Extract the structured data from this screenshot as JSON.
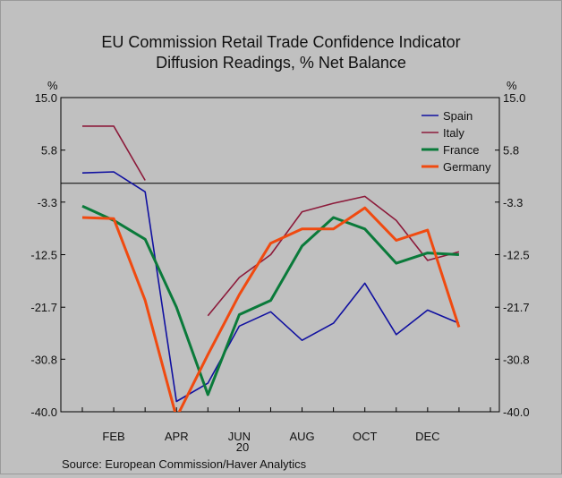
{
  "chart_data": {
    "type": "line",
    "title": "EU Commission Retail Trade Confidence Indicator",
    "subtitle": "Diffusion Readings, % Net Balance",
    "unit_left": "%",
    "unit_right": "%",
    "source": "Source:  European Commission/Haver Analytics",
    "ylim": [
      -40.0,
      15.0
    ],
    "yticks": [
      15.0,
      5.8,
      -3.3,
      -12.5,
      -21.7,
      -30.8,
      -40.0
    ],
    "ytick_labels": [
      "15.0",
      "5.8",
      "-3.3",
      "-12.5",
      "-21.7",
      "-30.8",
      "-40.0"
    ],
    "x": [
      "2020-01",
      "2020-02",
      "2020-03",
      "2020-04",
      "2020-05",
      "2020-06",
      "2020-07",
      "2020-08",
      "2020-09",
      "2020-10",
      "2020-11",
      "2020-12",
      "2021-01",
      "2021-02"
    ],
    "x_tick_labels": [
      {
        "month": "2020-02",
        "label": "FEB"
      },
      {
        "month": "2020-04",
        "label": "APR"
      },
      {
        "month": "2020-06",
        "label": "JUN"
      },
      {
        "month": "2020-08",
        "label": "AUG"
      },
      {
        "month": "2020-10",
        "label": "OCT"
      },
      {
        "month": "2020-12",
        "label": "DEC"
      }
    ],
    "year_label": "20",
    "reference_line": 0,
    "legend_position": "top-right",
    "series": [
      {
        "name": "Spain",
        "color": "#1010a0",
        "values": [
          1.8,
          2.0,
          -1.5,
          -38.2,
          -35.0,
          -25.0,
          -22.5,
          -27.5,
          -24.5,
          -17.5,
          -26.5,
          -22.2,
          -24.5,
          null
        ]
      },
      {
        "name": "Italy",
        "color": "#8c1a3a",
        "values": [
          10.0,
          10.0,
          0.5,
          null,
          -23.2,
          -16.5,
          -12.5,
          -5.0,
          -3.5,
          -2.3,
          -6.5,
          -13.5,
          -12.0,
          null
        ]
      },
      {
        "name": "France",
        "color": "#0a7a3a",
        "values": [
          -4.0,
          -6.5,
          -9.8,
          -21.7,
          -37.0,
          -23.0,
          -20.5,
          -11.0,
          -6.0,
          -8.0,
          -14.0,
          -12.2,
          -12.5,
          null
        ]
      },
      {
        "name": "Germany",
        "color": "#f04a10",
        "values": [
          -6.0,
          -6.2,
          -20.5,
          -41.0,
          -30.0,
          -19.5,
          -10.5,
          -8.0,
          -8.0,
          -4.3,
          -10.0,
          -8.2,
          -25.2,
          null
        ]
      }
    ]
  }
}
